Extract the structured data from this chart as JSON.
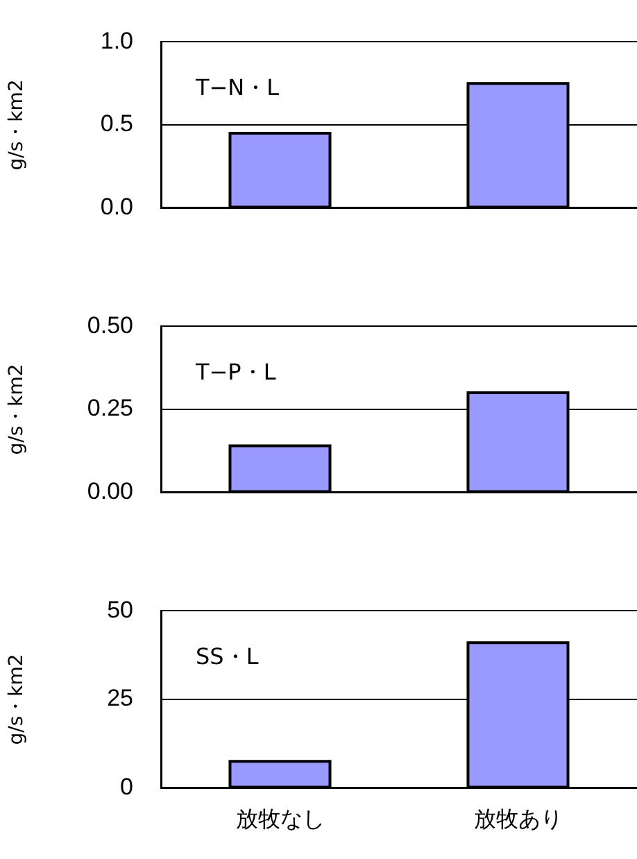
{
  "chart_data": [
    {
      "type": "bar",
      "categories": [
        null,
        null
      ],
      "values": [
        0.45,
        0.75
      ],
      "color": "#9999ff",
      "ylabel": "g/s・km2",
      "ylim": [
        0,
        1
      ],
      "yticks": [
        {
          "value": 0,
          "label": "0.0"
        },
        {
          "value": 0.5,
          "label": "0.5"
        },
        {
          "value": 1,
          "label": "1.0"
        }
      ],
      "grid": "y",
      "tick_labels": "y",
      "annotations": [
        "T−N・L"
      ]
    },
    {
      "type": "bar",
      "categories": [
        null,
        null
      ],
      "values": [
        0.14,
        0.3
      ],
      "color": "#9999ff",
      "ylabel": "g/s・km2",
      "ylim": [
        0,
        0.5
      ],
      "yticks": [
        {
          "value": 0,
          "label": "0.00"
        },
        {
          "value": 0.25,
          "label": "0.25"
        },
        {
          "value": 0.5,
          "label": "0.50"
        }
      ],
      "grid": "y",
      "tick_labels": "y",
      "annotations": [
        "T−P・L"
      ]
    },
    {
      "type": "bar",
      "categories": [
        "放牧なし",
        "放牧あり"
      ],
      "values": [
        7.5,
        41
      ],
      "color": "#9999ff",
      "ylabel": "g/s・km2",
      "ylim": [
        0,
        50
      ],
      "yticks": [
        0,
        25,
        50
      ],
      "grid": "y",
      "annotations": [
        "SS・L"
      ]
    }
  ]
}
